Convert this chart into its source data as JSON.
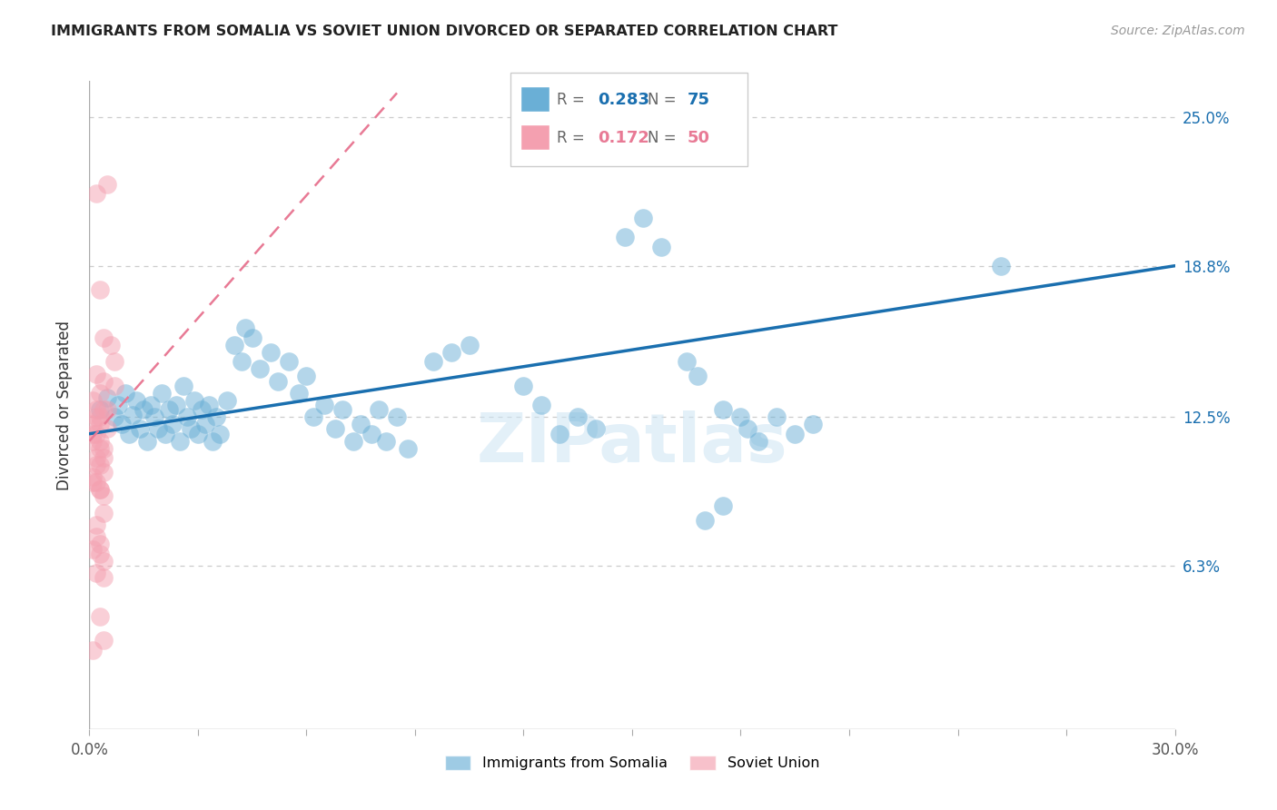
{
  "title": "IMMIGRANTS FROM SOMALIA VS SOVIET UNION DIVORCED OR SEPARATED CORRELATION CHART",
  "source": "Source: ZipAtlas.com",
  "ylabel": "Divorced or Separated",
  "xlim": [
    0.0,
    0.3
  ],
  "ylim": [
    -0.005,
    0.265
  ],
  "somalia_color": "#6aafd6",
  "soviet_color": "#f4a0b0",
  "somalia_line_color": "#1a6faf",
  "soviet_line_color": "#e87a95",
  "somalia_R": 0.283,
  "somalia_N": 75,
  "soviet_R": 0.172,
  "soviet_N": 50,
  "watermark": "ZIPatlas",
  "ytick_vals": [
    0.0,
    0.063,
    0.125,
    0.188,
    0.25
  ],
  "ytick_labels": [
    "",
    "6.3%",
    "12.5%",
    "18.8%",
    "25.0%"
  ],
  "somalia_line_x0": 0.0,
  "somalia_line_y0": 0.118,
  "somalia_line_x1": 0.3,
  "somalia_line_y1": 0.188,
  "soviet_line_x0": 0.0,
  "soviet_line_y0": 0.115,
  "soviet_line_x1": 0.085,
  "soviet_line_y1": 0.26,
  "somalia_points": [
    [
      0.003,
      0.128
    ],
    [
      0.005,
      0.133
    ],
    [
      0.007,
      0.125
    ],
    [
      0.008,
      0.13
    ],
    [
      0.009,
      0.122
    ],
    [
      0.01,
      0.135
    ],
    [
      0.011,
      0.118
    ],
    [
      0.012,
      0.126
    ],
    [
      0.013,
      0.132
    ],
    [
      0.014,
      0.12
    ],
    [
      0.015,
      0.128
    ],
    [
      0.016,
      0.115
    ],
    [
      0.017,
      0.13
    ],
    [
      0.018,
      0.125
    ],
    [
      0.019,
      0.12
    ],
    [
      0.02,
      0.135
    ],
    [
      0.021,
      0.118
    ],
    [
      0.022,
      0.128
    ],
    [
      0.023,
      0.122
    ],
    [
      0.024,
      0.13
    ],
    [
      0.025,
      0.115
    ],
    [
      0.026,
      0.138
    ],
    [
      0.027,
      0.125
    ],
    [
      0.028,
      0.12
    ],
    [
      0.029,
      0.132
    ],
    [
      0.03,
      0.118
    ],
    [
      0.031,
      0.128
    ],
    [
      0.032,
      0.122
    ],
    [
      0.033,
      0.13
    ],
    [
      0.034,
      0.115
    ],
    [
      0.035,
      0.125
    ],
    [
      0.036,
      0.118
    ],
    [
      0.038,
      0.132
    ],
    [
      0.04,
      0.155
    ],
    [
      0.042,
      0.148
    ],
    [
      0.043,
      0.162
    ],
    [
      0.045,
      0.158
    ],
    [
      0.047,
      0.145
    ],
    [
      0.05,
      0.152
    ],
    [
      0.052,
      0.14
    ],
    [
      0.055,
      0.148
    ],
    [
      0.058,
      0.135
    ],
    [
      0.06,
      0.142
    ],
    [
      0.062,
      0.125
    ],
    [
      0.065,
      0.13
    ],
    [
      0.068,
      0.12
    ],
    [
      0.07,
      0.128
    ],
    [
      0.073,
      0.115
    ],
    [
      0.075,
      0.122
    ],
    [
      0.078,
      0.118
    ],
    [
      0.08,
      0.128
    ],
    [
      0.082,
      0.115
    ],
    [
      0.085,
      0.125
    ],
    [
      0.088,
      0.112
    ],
    [
      0.095,
      0.148
    ],
    [
      0.1,
      0.152
    ],
    [
      0.105,
      0.155
    ],
    [
      0.12,
      0.138
    ],
    [
      0.125,
      0.13
    ],
    [
      0.13,
      0.118
    ],
    [
      0.135,
      0.125
    ],
    [
      0.14,
      0.12
    ],
    [
      0.148,
      0.2
    ],
    [
      0.153,
      0.208
    ],
    [
      0.158,
      0.196
    ],
    [
      0.165,
      0.148
    ],
    [
      0.168,
      0.142
    ],
    [
      0.175,
      0.128
    ],
    [
      0.18,
      0.125
    ],
    [
      0.182,
      0.12
    ],
    [
      0.185,
      0.115
    ],
    [
      0.19,
      0.125
    ],
    [
      0.195,
      0.118
    ],
    [
      0.2,
      0.122
    ],
    [
      0.17,
      0.082
    ],
    [
      0.175,
      0.088
    ],
    [
      0.252,
      0.188
    ]
  ],
  "soviet_points": [
    [
      0.002,
      0.218
    ],
    [
      0.005,
      0.222
    ],
    [
      0.003,
      0.178
    ],
    [
      0.004,
      0.158
    ],
    [
      0.006,
      0.155
    ],
    [
      0.002,
      0.143
    ],
    [
      0.004,
      0.14
    ],
    [
      0.007,
      0.148
    ],
    [
      0.001,
      0.132
    ],
    [
      0.003,
      0.135
    ],
    [
      0.005,
      0.128
    ],
    [
      0.007,
      0.138
    ],
    [
      0.002,
      0.125
    ],
    [
      0.003,
      0.122
    ],
    [
      0.004,
      0.128
    ],
    [
      0.005,
      0.12
    ],
    [
      0.001,
      0.118
    ],
    [
      0.003,
      0.115
    ],
    [
      0.004,
      0.112
    ],
    [
      0.002,
      0.108
    ],
    [
      0.003,
      0.105
    ],
    [
      0.004,
      0.102
    ],
    [
      0.001,
      0.1
    ],
    [
      0.002,
      0.098
    ],
    [
      0.003,
      0.095
    ],
    [
      0.004,
      0.092
    ],
    [
      0.002,
      0.128
    ],
    [
      0.003,
      0.125
    ],
    [
      0.001,
      0.122
    ],
    [
      0.002,
      0.118
    ],
    [
      0.001,
      0.115
    ],
    [
      0.003,
      0.112
    ],
    [
      0.004,
      0.108
    ],
    [
      0.002,
      0.105
    ],
    [
      0.001,
      0.07
    ],
    [
      0.003,
      0.068
    ],
    [
      0.004,
      0.065
    ],
    [
      0.002,
      0.06
    ],
    [
      0.004,
      0.058
    ],
    [
      0.001,
      0.098
    ],
    [
      0.003,
      0.095
    ],
    [
      0.004,
      0.085
    ],
    [
      0.002,
      0.08
    ],
    [
      0.002,
      0.075
    ],
    [
      0.003,
      0.072
    ],
    [
      0.003,
      0.042
    ],
    [
      0.001,
      0.028
    ],
    [
      0.004,
      0.032
    ]
  ]
}
